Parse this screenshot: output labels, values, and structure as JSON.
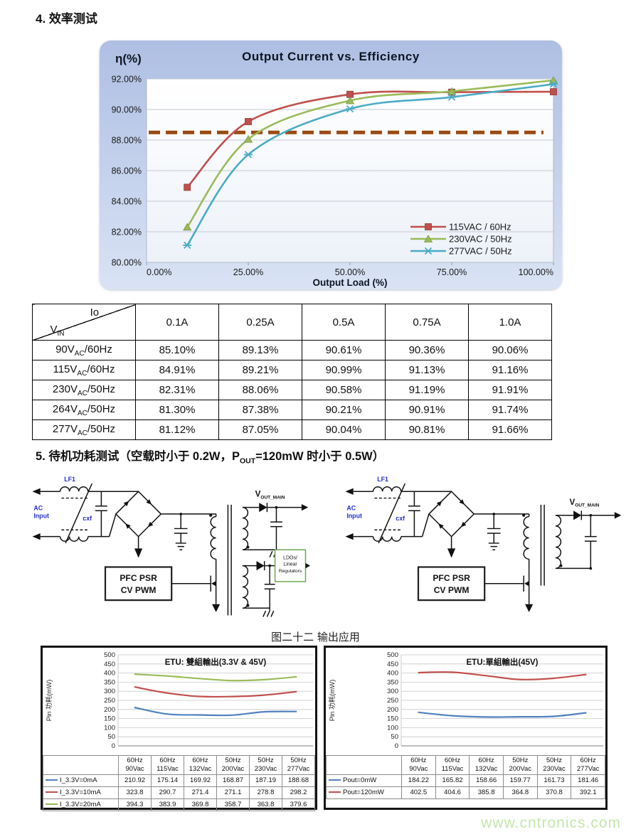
{
  "page": {
    "section4_title": "4.  效率测试",
    "section5": {
      "prefix": "5.  待机功耗测试（空载时小于 0.2W，P",
      "sub": "OUT",
      "suffix": "=120mW 时小于 0.5W）"
    },
    "figure_caption": "图二十二 输出应用",
    "watermark": "www.cntronics.com"
  },
  "chart_data": [
    {
      "type": "line",
      "title": "Output Current  vs.  Efficiency",
      "ylabel": "η(%)",
      "xlabel": "Output Load (%)",
      "x": [
        10,
        25,
        50,
        75,
        100
      ],
      "x_ticks": [
        0,
        25,
        50,
        75,
        100
      ],
      "x_tick_labels": [
        "0.00%",
        "25.00%",
        "50.00%",
        "75.00%",
        "100.00%"
      ],
      "ylim": [
        80,
        92
      ],
      "y_tick_step": 2,
      "y_tick_labels": [
        "80.00%",
        "82.00%",
        "84.00%",
        "86.00%",
        "88.00%",
        "90.00%",
        "92.00%"
      ],
      "grid": "horizontal",
      "legend_position": "bottom-right",
      "series": [
        {
          "name": "115VAC / 60Hz",
          "color": "#C0504D",
          "marker": "square",
          "values": [
            84.91,
            89.21,
            90.99,
            91.13,
            91.16
          ]
        },
        {
          "name": "230VAC / 50Hz",
          "color": "#9BBB59",
          "marker": "triangle",
          "values": [
            82.31,
            88.06,
            90.58,
            91.19,
            91.91
          ]
        },
        {
          "name": "277VAC / 50Hz",
          "color": "#4BACC6",
          "marker": "asterisk",
          "values": [
            81.12,
            87.05,
            90.04,
            90.81,
            91.66
          ]
        }
      ],
      "reference_line": {
        "y": 88.5,
        "color": "#9A4A10",
        "style": "dashed"
      }
    },
    {
      "type": "line",
      "title": "ETU: 雙組輸出(3.3V & 45V)",
      "ylabel": "Pin 功耗(mW)",
      "ylim": [
        0,
        500
      ],
      "y_tick_step": 50,
      "grid": "horizontal",
      "data_table": true,
      "categories": [
        [
          "60Hz",
          "90Vac"
        ],
        [
          "60Hz",
          "115Vac"
        ],
        [
          "60Hz",
          "132Vac"
        ],
        [
          "50Hz",
          "200Vac"
        ],
        [
          "50Hz",
          "230Vac"
        ],
        [
          "50Hz",
          "277Vac"
        ]
      ],
      "series": [
        {
          "name": "I_3.3V=0mA",
          "color": "#4F81BD",
          "values": [
            210.92,
            175.14,
            169.92,
            168.87,
            187.19,
            188.68
          ]
        },
        {
          "name": "I_3.3V=10mA",
          "color": "#C0504D",
          "values": [
            323.8,
            290.7,
            271.4,
            271.1,
            278.8,
            298.2
          ]
        },
        {
          "name": "I_3.3V=20mA",
          "color": "#9BBB59",
          "values": [
            394.3,
            383.9,
            369.8,
            358.7,
            363.8,
            379.6
          ]
        }
      ]
    },
    {
      "type": "line",
      "title": "ETU:單組輸出(45V)",
      "ylabel": "Pin 功耗(mW)",
      "ylim": [
        0,
        500
      ],
      "y_tick_step": 50,
      "grid": "horizontal",
      "data_table": true,
      "categories": [
        [
          "60Hz",
          "90Vac"
        ],
        [
          "60Hz",
          "115Vac"
        ],
        [
          "60Hz",
          "132Vac"
        ],
        [
          "50Hz",
          "200Vac"
        ],
        [
          "50Hz",
          "230Vac"
        ],
        [
          "60Hz",
          "277Vac"
        ]
      ],
      "series": [
        {
          "name": "Pout=0mW",
          "color": "#4F81BD",
          "values": [
            184.22,
            165.82,
            158.66,
            159.77,
            161.73,
            181.46
          ]
        },
        {
          "name": "Pout=120mW",
          "color": "#C0504D",
          "values": [
            402.5,
            404.6,
            385.8,
            364.8,
            370.8,
            392.1
          ]
        }
      ]
    }
  ],
  "efficiency_table": {
    "corner": {
      "top": "Io",
      "bottom_main": "V",
      "bottom_sub": "IN"
    },
    "columns": [
      "0.1A",
      "0.25A",
      "0.5A",
      "0.75A",
      "1.0A"
    ],
    "rows": [
      {
        "label_main": "90V",
        "label_sub": "AC",
        "label_rest": "/60Hz",
        "values": [
          "85.10%",
          "89.13%",
          "90.61%",
          "90.36%",
          "90.06%"
        ]
      },
      {
        "label_main": "115V",
        "label_sub": "AC",
        "label_rest": "/60Hz",
        "values": [
          "84.91%",
          "89.21%",
          "90.99%",
          "91.13%",
          "91.16%"
        ]
      },
      {
        "label_main": "230V",
        "label_sub": "AC",
        "label_rest": "/50Hz",
        "values": [
          "82.31%",
          "88.06%",
          "90.58%",
          "91.19%",
          "91.91%"
        ]
      },
      {
        "label_main": "264V",
        "label_sub": "AC",
        "label_rest": "/50Hz",
        "values": [
          "81.30%",
          "87.38%",
          "90.21%",
          "90.91%",
          "91.74%"
        ]
      },
      {
        "label_main": "277V",
        "label_sub": "AC",
        "label_rest": "/50Hz",
        "values": [
          "81.12%",
          "87.05%",
          "90.04%",
          "90.81%",
          "91.66%"
        ]
      }
    ]
  },
  "circuit_labels": {
    "ac": "AC",
    "input": "Input",
    "lf1": "LF1",
    "cxf": "cxf",
    "pfc_line1": "PFC PSR",
    "pfc_line2": "CV PWM",
    "vout_main_v": "V",
    "vout_main_sub": "OUT_MAIN",
    "ldo_line1": "LDOs/",
    "ldo_line2": "Linear",
    "ldo_line3": "Regulators"
  }
}
